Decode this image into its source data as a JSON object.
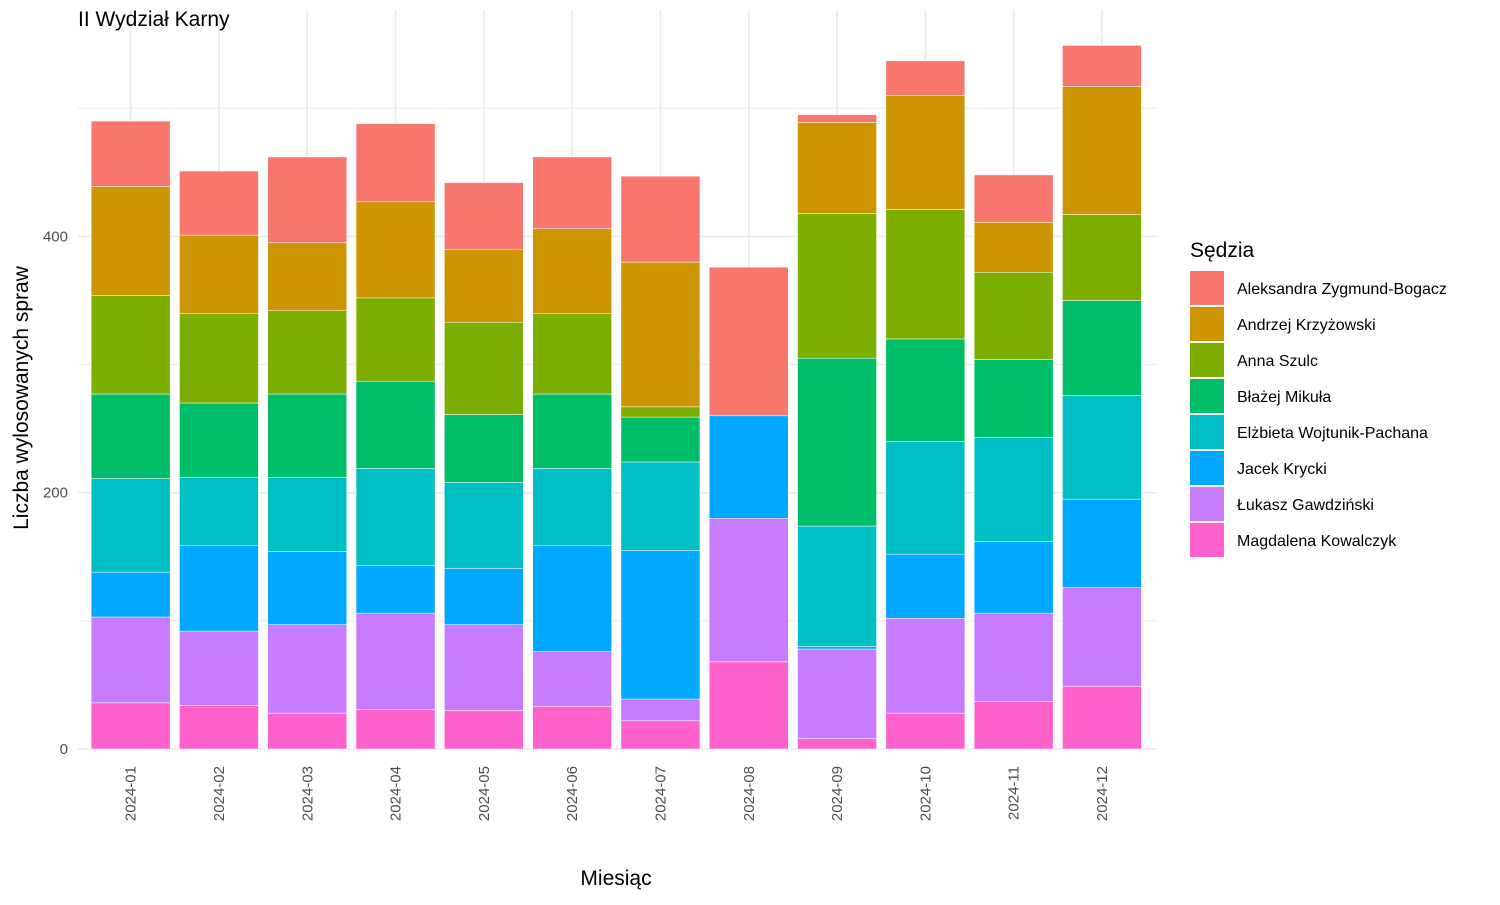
{
  "chart_data": {
    "type": "bar",
    "stacked": true,
    "title": "II Wydział Karny",
    "xlabel": "Miesiąc",
    "ylabel": "Liczba wylosowanych spraw",
    "ylim": [
      0,
      550
    ],
    "yticks": [
      0,
      200,
      400
    ],
    "grid": true,
    "legend_position": "right",
    "legend_title": "Sędzia",
    "categories": [
      "2024-01",
      "2024-02",
      "2024-03",
      "2024-04",
      "2024-05",
      "2024-06",
      "2024-07",
      "2024-08",
      "2024-09",
      "2024-10",
      "2024-11",
      "2024-12"
    ],
    "series": [
      {
        "name": "Magdalena Kowalczyk",
        "color": "#FF61CC",
        "values": [
          36,
          34,
          28,
          31,
          30,
          33,
          22,
          68,
          8,
          28,
          37,
          49
        ]
      },
      {
        "name": "Łukasz Gawdziński",
        "color": "#C77CFF",
        "values": [
          67,
          58,
          69,
          75,
          67,
          43,
          17,
          112,
          70,
          74,
          69,
          77
        ]
      },
      {
        "name": "Jacek Krycki",
        "color": "#00A9FF",
        "values": [
          35,
          67,
          57,
          37,
          44,
          83,
          116,
          80,
          2,
          50,
          56,
          69
        ]
      },
      {
        "name": "Elżbieta Wojtunik-Pachana",
        "color": "#00BFC4",
        "values": [
          73,
          53,
          58,
          76,
          67,
          60,
          69,
          0,
          94,
          88,
          81,
          81
        ]
      },
      {
        "name": "Błażej Mikuła",
        "color": "#00BE67",
        "values": [
          66,
          58,
          65,
          68,
          53,
          58,
          35,
          0,
          131,
          80,
          61,
          74
        ]
      },
      {
        "name": "Anna Szulc",
        "color": "#7CAE00",
        "values": [
          77,
          70,
          65,
          65,
          72,
          63,
          8,
          0,
          113,
          101,
          68,
          67
        ]
      },
      {
        "name": "Andrzej Krzyżowski",
        "color": "#CD9600",
        "values": [
          85,
          61,
          53,
          75,
          57,
          66,
          113,
          0,
          71,
          89,
          39,
          100
        ]
      },
      {
        "name": "Aleksandra Zygmund-Bogacz",
        "color": "#F8766D",
        "values": [
          51,
          50,
          67,
          61,
          52,
          56,
          67,
          116,
          6,
          27,
          37,
          32
        ]
      }
    ]
  }
}
